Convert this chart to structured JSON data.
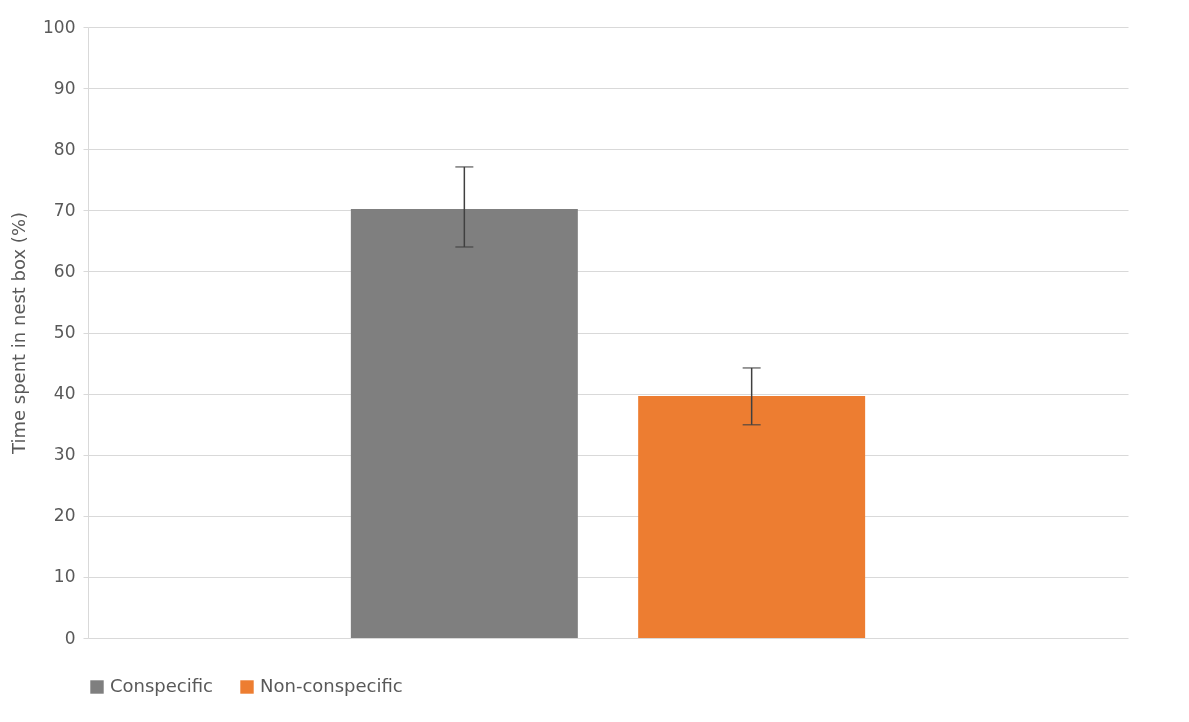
{
  "chart_data": {
    "type": "bar",
    "ylabel": "Time spent in nest box (%)",
    "categories": [
      null
    ],
    "series": [
      {
        "name": "Conspecific",
        "color": "#7f7f7f",
        "values": [
          70.2
        ],
        "errors": [
          [
            64.0,
            77.1
          ]
        ]
      },
      {
        "name": "Non-conspecific",
        "color": "#ed7d31",
        "values": [
          39.6
        ],
        "errors": [
          [
            34.9,
            44.2
          ]
        ]
      }
    ],
    "ylim": [
      0,
      100
    ],
    "yticks": [
      0,
      10,
      20,
      30,
      40,
      50,
      60,
      70,
      80,
      90,
      100
    ],
    "grid": "y",
    "legend": "bottom",
    "tick_labels": "y"
  }
}
